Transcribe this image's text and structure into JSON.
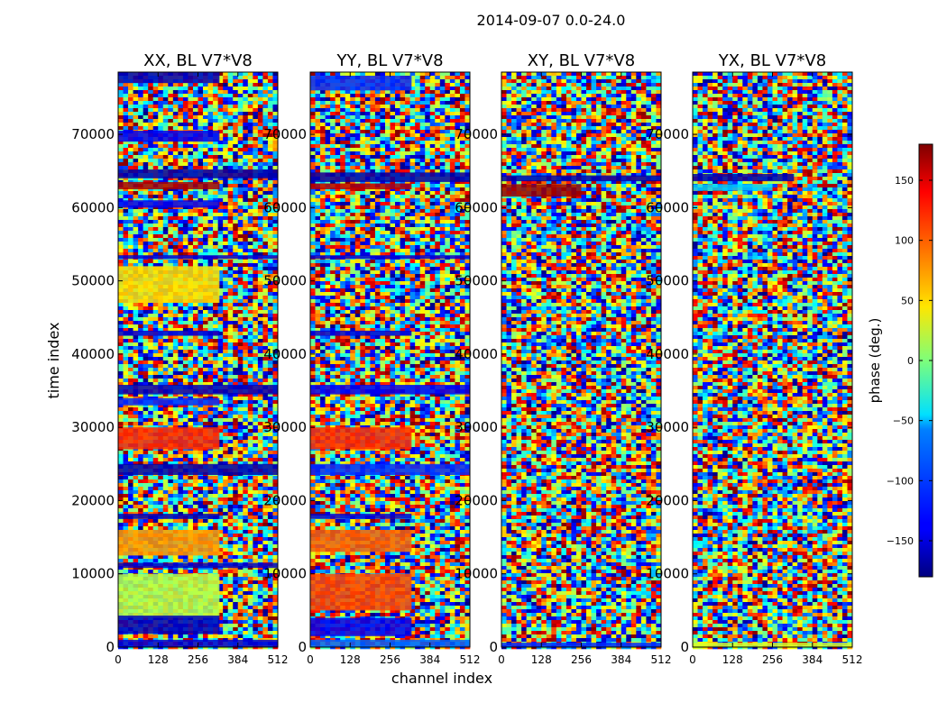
{
  "chart_data": {
    "type": "heatmap",
    "suptitle": "2014-09-07 0.0-24.0",
    "xlabel": "channel index",
    "ylabel": "time index",
    "xlim": [
      0,
      512
    ],
    "ylim": [
      0,
      78500
    ],
    "xticks": [
      0,
      128,
      256,
      384,
      512
    ],
    "yticks": [
      0,
      10000,
      20000,
      30000,
      40000,
      50000,
      60000,
      70000
    ],
    "panels": [
      {
        "title": "XX, BL V7*V8",
        "bands": [
          {
            "y0": 77000,
            "y1": 78500,
            "x1": 325,
            "value": -160
          },
          {
            "y0": 69000,
            "y1": 70500,
            "x1": 325,
            "value": -140
          },
          {
            "y0": 64000,
            "y1": 65200,
            "x1": 512,
            "value": -165
          },
          {
            "y0": 62500,
            "y1": 63500,
            "x1": 325,
            "value": 165
          },
          {
            "y0": 60000,
            "y1": 61000,
            "x1": 325,
            "value": -140
          },
          {
            "y0": 53000,
            "y1": 53500,
            "x1": 512,
            "value": -150
          },
          {
            "y0": 47000,
            "y1": 52000,
            "x1": 325,
            "value": 55
          },
          {
            "y0": 42500,
            "y1": 43200,
            "x1": 325,
            "value": -150
          },
          {
            "y0": 34500,
            "y1": 35800,
            "x1": 512,
            "value": -160
          },
          {
            "y0": 33000,
            "y1": 34000,
            "x1": 325,
            "value": -120
          },
          {
            "y0": 27000,
            "y1": 30000,
            "x1": 325,
            "value": 120
          },
          {
            "y0": 23500,
            "y1": 25000,
            "x1": 512,
            "value": -165
          },
          {
            "y0": 17500,
            "y1": 18200,
            "x1": 325,
            "value": -160
          },
          {
            "y0": 12500,
            "y1": 16000,
            "x1": 325,
            "value": 80
          },
          {
            "y0": 10800,
            "y1": 11500,
            "x1": 512,
            "value": -155
          },
          {
            "y0": 4000,
            "y1": 10000,
            "x1": 325,
            "value": 20
          },
          {
            "y0": 1800,
            "y1": 4300,
            "x1": 325,
            "value": -160
          },
          {
            "y0": 0,
            "y1": 1000,
            "x1": 512,
            "value": -150
          }
        ]
      },
      {
        "title": "YY, BL V7*V8",
        "bands": [
          {
            "y0": 76000,
            "y1": 78000,
            "x1": 325,
            "value": -120
          },
          {
            "y0": 63500,
            "y1": 64800,
            "x1": 512,
            "value": -165
          },
          {
            "y0": 62500,
            "y1": 63300,
            "x1": 325,
            "value": 160
          },
          {
            "y0": 53000,
            "y1": 53500,
            "x1": 512,
            "value": -150
          },
          {
            "y0": 42500,
            "y1": 43200,
            "x1": 325,
            "value": -150
          },
          {
            "y0": 34500,
            "y1": 35800,
            "x1": 512,
            "value": -140
          },
          {
            "y0": 27000,
            "y1": 30000,
            "x1": 325,
            "value": 120
          },
          {
            "y0": 23500,
            "y1": 25000,
            "x1": 512,
            "value": -120
          },
          {
            "y0": 17500,
            "y1": 18200,
            "x1": 325,
            "value": -150
          },
          {
            "y0": 13000,
            "y1": 16000,
            "x1": 325,
            "value": 100
          },
          {
            "y0": 5000,
            "y1": 10000,
            "x1": 325,
            "value": 110
          },
          {
            "y0": 1500,
            "y1": 4000,
            "x1": 325,
            "value": -140
          },
          {
            "y0": 0,
            "y1": 1000,
            "x1": 512,
            "value": -100
          }
        ]
      },
      {
        "title": "XY, BL V7*V8",
        "bands": [
          {
            "y0": 63600,
            "y1": 64400,
            "x1": 512,
            "value": -165
          },
          {
            "y0": 61500,
            "y1": 63200,
            "x1": 256,
            "value": 170
          },
          {
            "y0": 0,
            "y1": 600,
            "x1": 512,
            "value": -120
          }
        ]
      },
      {
        "title": "YX, BL V7*V8",
        "bands": [
          {
            "y0": 63600,
            "y1": 64600,
            "x1": 325,
            "value": -165
          },
          {
            "y0": 62300,
            "y1": 63200,
            "x1": 256,
            "value": -60
          },
          {
            "y0": 0,
            "y1": 600,
            "x1": 512,
            "value": 30
          }
        ]
      }
    ],
    "colorbar": {
      "label": "phase (deg.)",
      "range": [
        -180,
        180
      ],
      "ticks": [
        -150,
        -100,
        -50,
        0,
        50,
        100,
        150
      ],
      "colormap": "jet"
    }
  }
}
